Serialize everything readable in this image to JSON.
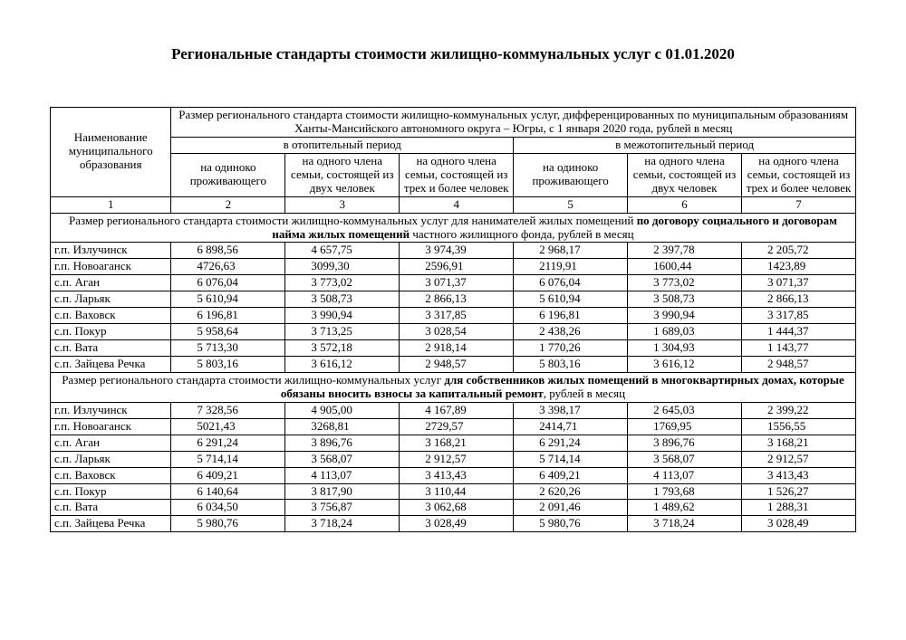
{
  "title": "Региональные стандарты стоимости жилищно-коммунальных услуг с 01.01.2020",
  "header": {
    "col1": "Наименование муниципального образования",
    "top": "Размер регионального стандарта стоимости жилищно-коммунальных услуг, дифференцированных по муниципальным образованиям Ханты-Мансийского автономного округа – Югры, с 1 января 2020 года, рублей в месяц",
    "heat": "в отопительный период",
    "noheat": "в межотопительный период",
    "c_single": "на одиноко проживающего",
    "c_two": "на одного члена семьи, состоящей из двух человек",
    "c_three": "на одного члена семьи, состоящей из трех и более человек",
    "c_three_alt": "на одного члена семьи, состоящей из трех и более человек"
  },
  "colnums": [
    "1",
    "2",
    "3",
    "4",
    "5",
    "6",
    "7"
  ],
  "section1": {
    "pre": "Размер регионального стандарта стоимости жилищно-коммунальных услуг для нанимателей жилых помещений ",
    "bold1": "по договору социального и договорам найма жилых помещений",
    "post": " частного жилищного фонда,  рублей в месяц"
  },
  "section2": {
    "pre": "Размер регионального стандарта стоимости жилищно-коммунальных услуг ",
    "bold1": "для собственников жилых помещений в многоквартирных домах, которые обязаны вносить взносы за капитальный ремонт",
    "post": ", рублей в месяц"
  },
  "group1": [
    {
      "name": "г.п. Излучинск",
      "v": [
        "6 898,56",
        "4 657,75",
        "3 974,39",
        "2 968,17",
        "2 397,78",
        "2 205,72"
      ]
    },
    {
      "name": "г.п. Новоаганск",
      "v": [
        "4726,63",
        "3099,30",
        "2596,91",
        "2119,91",
        "1600,44",
        "1423,89"
      ]
    },
    {
      "name": "с.п. Аган",
      "v": [
        "6 076,04",
        "3 773,02",
        "3 071,37",
        "6 076,04",
        "3 773,02",
        "3 071,37"
      ]
    },
    {
      "name": "с.п. Ларьяк",
      "v": [
        "5 610,94",
        "3 508,73",
        "2 866,13",
        "5 610,94",
        "3 508,73",
        "2 866,13"
      ]
    },
    {
      "name": "с.п. Ваховск",
      "v": [
        "6 196,81",
        "3 990,94",
        "3 317,85",
        "6 196,81",
        "3 990,94",
        "3 317,85"
      ]
    },
    {
      "name": "с.п. Покур",
      "v": [
        "5 958,64",
        "3 713,25",
        "3 028,54",
        "2 438,26",
        "1 689,03",
        "1 444,37"
      ]
    },
    {
      "name": "с.п. Вата",
      "v": [
        "5 713,30",
        "3 572,18",
        "2 918,14",
        "1 770,26",
        "1 304,93",
        "1 143,77"
      ]
    },
    {
      "name": "с.п. Зайцева Речка",
      "v": [
        "5 803,16",
        "3 616,12",
        "2 948,57",
        "5 803,16",
        "3 616,12",
        "2 948,57"
      ]
    }
  ],
  "group2": [
    {
      "name": "г.п. Излучинск",
      "v": [
        "7 328,56",
        "4 905,00",
        "4 167,89",
        "3 398,17",
        "2 645,03",
        "2 399,22"
      ]
    },
    {
      "name": "г.п. Новоаганск",
      "v": [
        "5021,43",
        "3268,81",
        "2729,57",
        "2414,71",
        "1769,95",
        "1556,55"
      ]
    },
    {
      "name": "с.п. Аган",
      "v": [
        "6 291,24",
        "3 896,76",
        "3 168,21",
        "6 291,24",
        "3 896,76",
        "3 168,21"
      ]
    },
    {
      "name": "с.п. Ларьяк",
      "v": [
        "5 714,14",
        "3 568,07",
        "2 912,57",
        "5 714,14",
        "3 568,07",
        "2 912,57"
      ]
    },
    {
      "name": "с.п. Ваховск",
      "v": [
        "6 409,21",
        "4 113,07",
        "3 413,43",
        "6 409,21",
        "4 113,07",
        "3 413,43"
      ]
    },
    {
      "name": "с.п. Покур",
      "v": [
        "6 140,64",
        "3 817,90",
        "3 110,44",
        "2 620,26",
        "1 793,68",
        "1 526,27"
      ]
    },
    {
      "name": "с.п. Вата",
      "v": [
        "6 034,50",
        "3 756,87",
        "3 062,68",
        "2 091,46",
        "1 489,62",
        "1 288,31"
      ]
    },
    {
      "name": "с.п. Зайцева Речка",
      "v": [
        "5 980,76",
        "3 718,24",
        "3 028,49",
        "5 980,76",
        "3 718,24",
        "3 028,49"
      ]
    }
  ],
  "widths": {
    "name": "15%",
    "num": "14.16%"
  }
}
